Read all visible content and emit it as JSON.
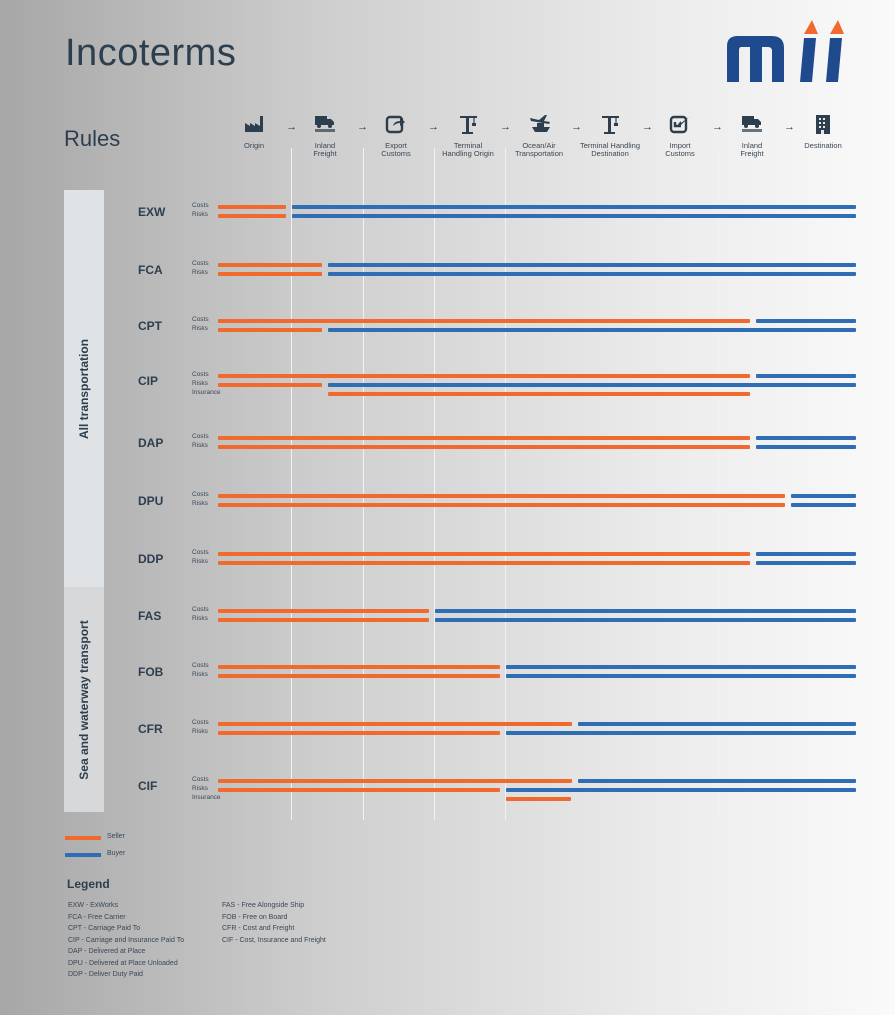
{
  "header": {
    "title": "Incoterms",
    "subtitle": "Rules"
  },
  "colors": {
    "seller": "#ef6a2c",
    "buyer": "#2f6db5",
    "logo_blue": "#1f4b8e",
    "logo_accent": "#ef6a2c"
  },
  "stages": [
    {
      "icon": "factory-icon",
      "label": "Origin"
    },
    {
      "icon": "truck-icon",
      "label": "Inland\nFreight"
    },
    {
      "icon": "export-icon",
      "label": "Export\nCustoms"
    },
    {
      "icon": "crane-icon",
      "label": "Terminal\nHandling Origin"
    },
    {
      "icon": "plane-ship-icon",
      "label": "Ocean/Air\nTransportation"
    },
    {
      "icon": "crane-icon",
      "label": "Terminal Handling\nDestination"
    },
    {
      "icon": "import-icon",
      "label": "Import\nCustoms"
    },
    {
      "icon": "truck-icon",
      "label": "Inland\nFreight"
    },
    {
      "icon": "building-icon",
      "label": "Destination"
    }
  ],
  "groups": [
    {
      "label": "All transportation"
    },
    {
      "label": "Sea and waterway transport"
    }
  ],
  "row_labels": {
    "costs": "Costs",
    "risks": "Risks",
    "insurance": "Insurance"
  },
  "terms": [
    {
      "code": "EXW",
      "costs_transfer": 1,
      "risks_transfer": 1,
      "insurance": null
    },
    {
      "code": "FCA",
      "costs_transfer": 1.5,
      "risks_transfer": 1.5,
      "insurance": null
    },
    {
      "code": "CPT",
      "costs_transfer": 7.5,
      "risks_transfer": 1.5,
      "insurance": null
    },
    {
      "code": "CIP",
      "costs_transfer": 7.5,
      "risks_transfer": 1.5,
      "insurance": [
        1.5,
        7.5
      ]
    },
    {
      "code": "DAP",
      "costs_transfer": 7.5,
      "risks_transfer": 7.5,
      "insurance": null
    },
    {
      "code": "DPU",
      "costs_transfer": 8,
      "risks_transfer": 8,
      "insurance": null
    },
    {
      "code": "DDP",
      "costs_transfer": 7.5,
      "risks_transfer": 7.5,
      "insurance": null
    },
    {
      "code": "FAS",
      "costs_transfer": 3,
      "risks_transfer": 3,
      "insurance": null
    },
    {
      "code": "FOB",
      "costs_transfer": 4,
      "risks_transfer": 4,
      "insurance": null
    },
    {
      "code": "CFR",
      "costs_transfer": 5,
      "risks_transfer": 4,
      "insurance": null
    },
    {
      "code": "CIF",
      "costs_transfer": 5,
      "risks_transfer": 4,
      "insurance": [
        4,
        5
      ]
    }
  ],
  "key": {
    "seller": "Seller",
    "buyer": "Buyer"
  },
  "legend": {
    "title": "Legend",
    "col1": [
      "EXW -  ExWorks",
      "FCA -  Free Carrier",
      "CPT -  Carriage Paid To",
      "CIP -  Carriage and Insurance Paid To",
      "DAP -  Delivered at Place",
      "DPU -  Delivered at Place Unloaded",
      "DDP -  Deliver Duty Paid"
    ],
    "col2": [
      "FAS -  Free Alongside Ship",
      "FOB -  Free on Board",
      "CFR -  Cost and Freight",
      "CIF -  Cost, Insurance and Freight"
    ]
  }
}
